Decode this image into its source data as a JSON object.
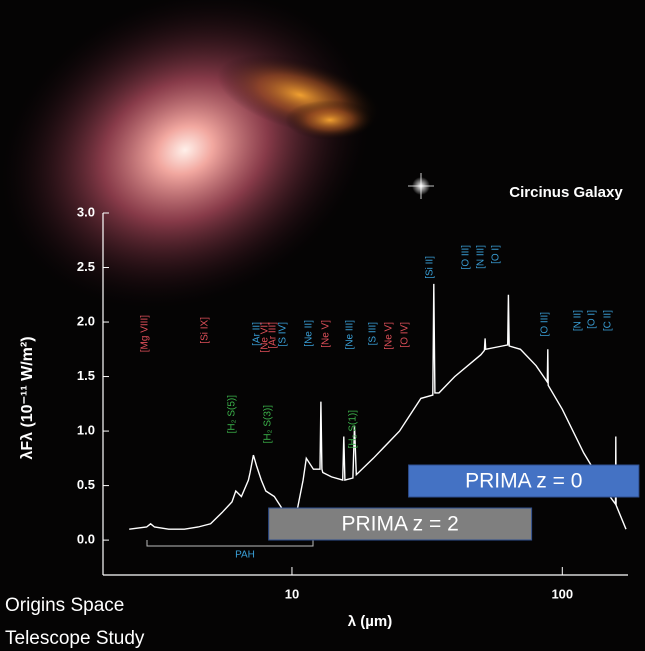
{
  "chart_data": {
    "type": "line",
    "title": "Circinus Galaxy",
    "y_label": "λFλ (10⁻¹¹ W/m²)",
    "x_label": "λ (µm)",
    "xlog": true,
    "xlim": [
      2,
      175
    ],
    "xticks": [
      10,
      100
    ],
    "ylim": [
      -0.32,
      3.0
    ],
    "yticks": [
      {
        "value": 0,
        "label": "0.0"
      },
      0.5,
      {
        "value": 1,
        "label": "1.0"
      },
      1.5,
      {
        "value": 2,
        "label": "2.0"
      },
      2.5,
      {
        "value": 3,
        "label": "3.0"
      }
    ],
    "color": "#ffffff",
    "x": [
      2.5,
      2.9,
      3.0,
      3.1,
      3.5,
      4.0,
      4.5,
      5.0,
      5.5,
      6.0,
      6.2,
      6.5,
      6.9,
      7.0,
      7.2,
      7.4,
      7.7,
      8.0,
      8.6,
      9.7,
      10.5,
      11.0,
      11.3,
      12.0,
      12.7,
      12.8,
      12.9,
      13.0,
      14.0,
      15.4,
      15.55,
      15.7,
      16.8,
      17.03,
      17.3,
      20.0,
      25.0,
      30.0,
      33.2,
      33.48,
      33.8,
      35.0,
      40.0,
      50.0,
      51.5,
      51.8,
      52.1,
      60.0,
      62.8,
      63.18,
      63.6,
      70.0,
      80.0,
      88.0,
      88.36,
      88.7,
      100.0,
      120.0,
      150.0,
      157.3,
      157.7,
      158.1,
      172.0
    ],
    "values": [
      0.1,
      0.12,
      0.15,
      0.12,
      0.1,
      0.1,
      0.12,
      0.15,
      0.25,
      0.35,
      0.45,
      0.4,
      0.55,
      0.62,
      0.78,
      0.68,
      0.55,
      0.45,
      0.4,
      0.2,
      0.3,
      0.55,
      0.75,
      0.65,
      0.65,
      1.27,
      0.65,
      0.62,
      0.58,
      0.55,
      0.95,
      0.55,
      0.57,
      1.05,
      0.6,
      0.75,
      1.0,
      1.3,
      1.33,
      2.35,
      1.35,
      1.35,
      1.5,
      1.7,
      1.74,
      1.85,
      1.75,
      1.78,
      1.79,
      2.25,
      1.78,
      1.75,
      1.6,
      1.45,
      1.75,
      1.42,
      1.2,
      0.8,
      0.4,
      0.33,
      0.95,
      0.32,
      0.1
    ],
    "bands": [
      {
        "label": "PRIMA z = 0",
        "range": [
          27,
          192
        ],
        "color": "#4472c4"
      },
      {
        "label": "PRIMA z = 2",
        "range": [
          8.2,
          77
        ],
        "color": "#7f7f7f"
      }
    ],
    "pah_label": "PAH",
    "line_labels": [
      {
        "text": "[Mg VIII]",
        "color": "#e0505a"
      },
      {
        "text": "[Si IX]",
        "color": "#e0505a"
      },
      {
        "text": "[H₂ S(5)]",
        "color": "#3cb44b"
      },
      {
        "text": "[Ar II]",
        "color": "#3aa0d8"
      },
      {
        "text": "[Ne VI]",
        "color": "#e0505a"
      },
      {
        "text": "[Ar III]",
        "color": "#e0505a"
      },
      {
        "text": "[S IV]",
        "color": "#3aa0d8"
      },
      {
        "text": "[H₂ S(3)]",
        "color": "#3cb44b"
      },
      {
        "text": "[Ne II]",
        "color": "#3aa0d8"
      },
      {
        "text": "[Ne V]",
        "color": "#e0505a"
      },
      {
        "text": "[Ne III]",
        "color": "#3aa0d8"
      },
      {
        "text": "[H₂ S(1)]",
        "color": "#3cb44b"
      },
      {
        "text": "[S III]",
        "color": "#3aa0d8"
      },
      {
        "text": "[Ne V]",
        "color": "#e0505a"
      },
      {
        "text": "[O IV]",
        "color": "#e0505a"
      },
      {
        "text": "[Si II]",
        "color": "#3aa0d8"
      },
      {
        "text": "[O III]",
        "color": "#3aa0d8"
      },
      {
        "text": "[N III]",
        "color": "#3aa0d8"
      },
      {
        "text": "[O I]",
        "color": "#3aa0d8"
      },
      {
        "text": "[O III]",
        "color": "#3aa0d8"
      },
      {
        "text": "[N II]",
        "color": "#3aa0d8"
      },
      {
        "text": "[O I]",
        "color": "#3aa0d8"
      },
      {
        "text": "[C II]",
        "color": "#3aa0d8"
      }
    ],
    "footer": [
      "Origins Space",
      "Telescope Study"
    ]
  }
}
